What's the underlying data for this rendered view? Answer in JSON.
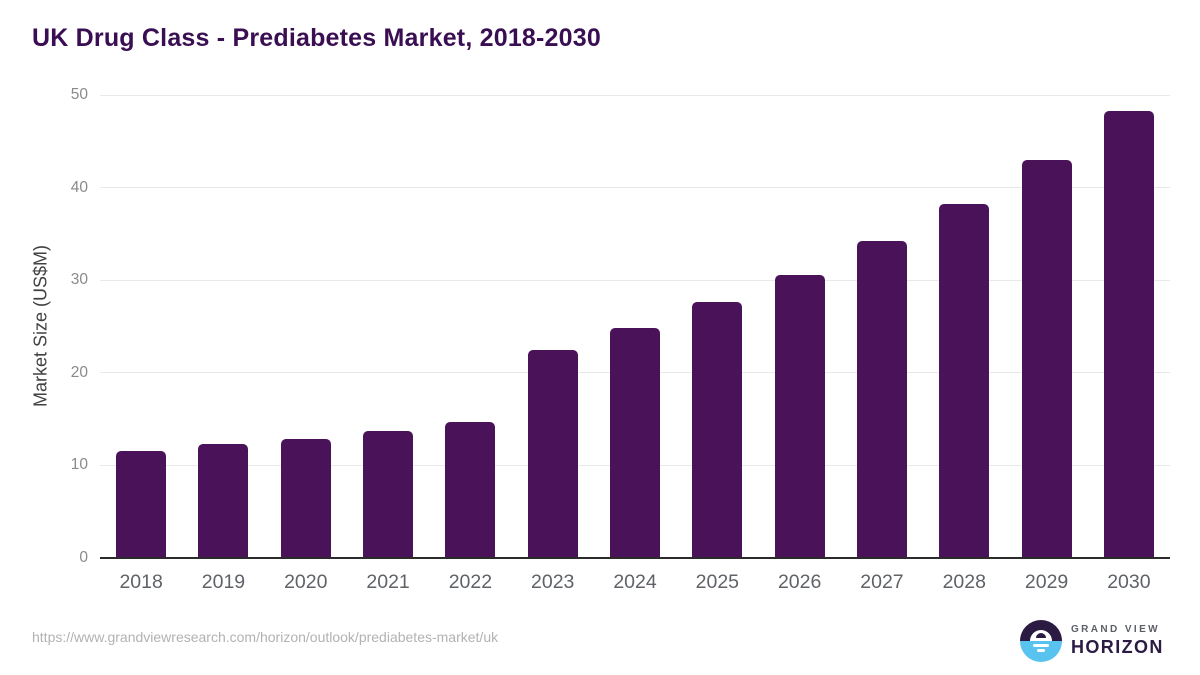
{
  "header": {
    "title": "UK Drug Class - Prediabetes Market, 2018-2030"
  },
  "chart_data": {
    "type": "bar",
    "title": "UK Drug Class - Prediabetes Market, 2018-2030",
    "categories": [
      "2018",
      "2019",
      "2020",
      "2021",
      "2022",
      "2023",
      "2024",
      "2025",
      "2026",
      "2027",
      "2028",
      "2029",
      "2030"
    ],
    "values": [
      11.6,
      12.3,
      12.9,
      13.7,
      14.7,
      22.5,
      24.8,
      27.6,
      30.6,
      34.2,
      38.2,
      43.0,
      48.3
    ],
    "xlabel": "",
    "ylabel": "Market Size (US$M)",
    "ylim": [
      0,
      50
    ],
    "yticks": [
      0,
      10,
      20,
      30,
      40,
      50
    ],
    "grid": true,
    "legend": false,
    "bar_color": "#4A1259"
  },
  "colors": {
    "title_text": "#3A0E52",
    "bar": "#4A1259",
    "gridline": "#E9E9E9",
    "axis_line": "#2B2B2B",
    "x_tick_text": "#5F6368",
    "y_tick_text": "#8A8A8A",
    "url_text": "#B2B2B2",
    "logo_purple": "#2B1B43",
    "logo_blue": "#59C3EF"
  },
  "footer": {
    "source_url": "https://www.grandviewresearch.com/horizon/outlook/prediabetes-market/uk",
    "logo": {
      "line1": "GRAND VIEW",
      "line2": "HORIZON",
      "icon": "sunrise-horizon-icon"
    }
  }
}
